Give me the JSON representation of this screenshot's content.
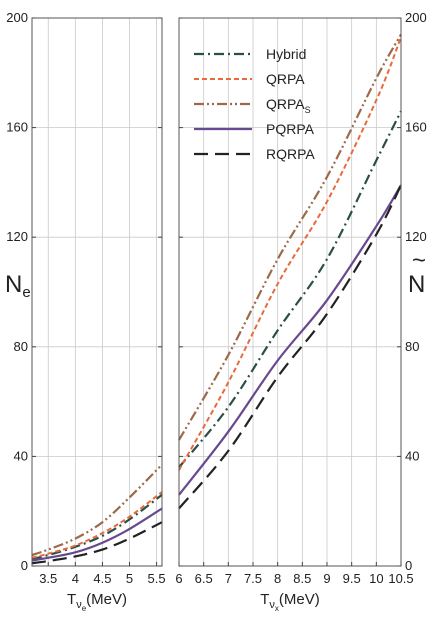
{
  "chart_data": [
    {
      "type": "line",
      "panel": "left",
      "x_range": [
        3.2,
        5.6
      ],
      "ylim": [
        0,
        200
      ],
      "x_ticks": [
        3.5,
        4,
        4.5,
        5,
        5.5
      ],
      "x_tick_labels": [
        "3.5",
        "4",
        "4.5",
        "5",
        "5.5"
      ],
      "y_ticks": [
        0,
        40,
        80,
        120,
        160,
        200
      ],
      "y_tick_labels": [
        "0",
        "40",
        "80",
        "120",
        "160",
        "200"
      ],
      "xlabel": {
        "main": "T",
        "sub": "ν",
        "subsub": "e",
        "unit": "(MeV)"
      },
      "ylabel": {
        "main": "N",
        "sub": "e"
      },
      "grid": true,
      "series": [
        {
          "name": "Hybrid",
          "style": "dashdot",
          "color": "#2b4f45",
          "points": [
            [
              3.2,
              2.5
            ],
            [
              3.5,
              4
            ],
            [
              4,
              7
            ],
            [
              4.5,
              11
            ],
            [
              5,
              17
            ],
            [
              5.6,
              26
            ]
          ]
        },
        {
          "name": "QRPA",
          "style": "dash",
          "color": "#e86a3c",
          "points": [
            [
              3.2,
              3
            ],
            [
              3.5,
              4.5
            ],
            [
              4,
              7.5
            ],
            [
              4.5,
              12
            ],
            [
              5,
              18
            ],
            [
              5.6,
              27
            ]
          ]
        },
        {
          "name": "QRPA_S",
          "style": "dashdotdot",
          "color": "#9c6a4a",
          "points": [
            [
              3.2,
              4
            ],
            [
              3.5,
              6
            ],
            [
              4,
              10
            ],
            [
              4.5,
              16
            ],
            [
              5,
              25
            ],
            [
              5.6,
              37
            ]
          ]
        },
        {
          "name": "PQRPA",
          "style": "solid",
          "color": "#67498f",
          "points": [
            [
              3.2,
              2
            ],
            [
              3.5,
              3
            ],
            [
              4,
              5
            ],
            [
              4.5,
              8.5
            ],
            [
              5,
              13.5
            ],
            [
              5.6,
              21
            ]
          ]
        },
        {
          "name": "RQRPA",
          "style": "longdash",
          "color": "#222222",
          "points": [
            [
              3.2,
              1
            ],
            [
              3.5,
              1.8
            ],
            [
              4,
              3.5
            ],
            [
              4.5,
              6
            ],
            [
              5,
              10
            ],
            [
              5.6,
              16
            ]
          ]
        }
      ]
    },
    {
      "type": "line",
      "panel": "right",
      "x_range": [
        6,
        10.5
      ],
      "ylim": [
        0,
        200
      ],
      "x_ticks": [
        6,
        6.5,
        7,
        7.5,
        8,
        8.5,
        9,
        9.5,
        10,
        10.5
      ],
      "x_tick_labels": [
        "6",
        "6.5",
        "7",
        "7.5",
        "8",
        "8.5",
        "9",
        "9.5",
        "10",
        "10.5"
      ],
      "y_ticks": [
        0,
        40,
        80,
        120,
        160,
        200
      ],
      "y_tick_labels": [
        "0",
        "40",
        "80",
        "120",
        "160",
        "200"
      ],
      "xlabel": {
        "main": "T",
        "sub": "ν",
        "subsub": "x",
        "unit": "(MeV)"
      },
      "ylabel": {
        "main": "N",
        "accent": "~"
      },
      "grid": true,
      "legend": {
        "placement": "top-left",
        "entries": [
          {
            "text": "Hybrid",
            "series": "Hybrid"
          },
          {
            "text": "QRPA",
            "series": "QRPA"
          },
          {
            "text": "QRPA",
            "sub": "S",
            "series": "QRPA_S"
          },
          {
            "text": "PQRPA",
            "series": "PQRPA"
          },
          {
            "text": "RQRPA",
            "series": "RQRPA"
          }
        ]
      },
      "series": [
        {
          "name": "Hybrid",
          "style": "dashdot",
          "color": "#2b4f45",
          "points": [
            [
              6,
              36
            ],
            [
              7,
              58
            ],
            [
              8,
              86
            ],
            [
              9,
              112
            ],
            [
              10,
              148
            ],
            [
              10.5,
              166
            ]
          ]
        },
        {
          "name": "QRPA",
          "style": "dash",
          "color": "#e86a3c",
          "points": [
            [
              6,
              35
            ],
            [
              7,
              67
            ],
            [
              8,
              103
            ],
            [
              9,
              133
            ],
            [
              10,
              170
            ],
            [
              10.5,
              193
            ]
          ]
        },
        {
          "name": "QRPA_S",
          "style": "dashdotdot",
          "color": "#9c6a4a",
          "points": [
            [
              6,
              46
            ],
            [
              7,
              77
            ],
            [
              8,
              112
            ],
            [
              9,
              142
            ],
            [
              10,
              178
            ],
            [
              10.5,
              194
            ]
          ]
        },
        {
          "name": "PQRPA",
          "style": "solid",
          "color": "#67498f",
          "points": [
            [
              6,
              26
            ],
            [
              7,
              49
            ],
            [
              8,
              75
            ],
            [
              9,
              97
            ],
            [
              10,
              124
            ],
            [
              10.5,
              139
            ]
          ]
        },
        {
          "name": "RQRPA",
          "style": "longdash",
          "color": "#222222",
          "points": [
            [
              6,
              21
            ],
            [
              7,
              42
            ],
            [
              8,
              69
            ],
            [
              9,
              92
            ],
            [
              10,
              121
            ],
            [
              10.5,
              139
            ]
          ]
        }
      ]
    }
  ]
}
